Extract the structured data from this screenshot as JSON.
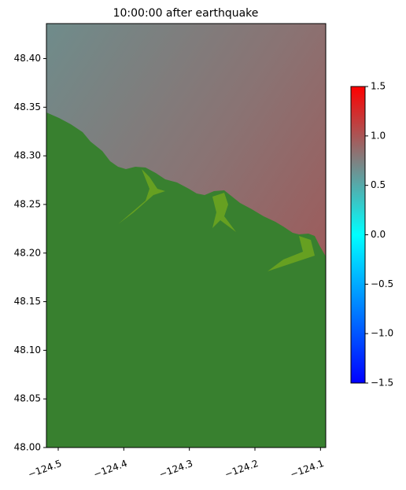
{
  "chart_data": {
    "type": "heatmap",
    "title": "10:00:00 after earthquake",
    "xlim": [
      -124.518,
      -124.092
    ],
    "xticks": [
      {
        "value": -124.5,
        "label": "−124.5"
      },
      {
        "value": -124.4,
        "label": "−124.4"
      },
      {
        "value": -124.3,
        "label": "−124.3"
      },
      {
        "value": -124.2,
        "label": "−124.2"
      },
      {
        "value": -124.1,
        "label": "−124.1"
      }
    ],
    "ylim": [
      48.0,
      48.436
    ],
    "yticks": [
      {
        "value": 48.0,
        "label": "48.00"
      },
      {
        "value": 48.05,
        "label": "48.05"
      },
      {
        "value": 48.1,
        "label": "48.10"
      },
      {
        "value": 48.15,
        "label": "48.15"
      },
      {
        "value": 48.2,
        "label": "48.20"
      },
      {
        "value": 48.25,
        "label": "48.25"
      },
      {
        "value": 48.3,
        "label": "48.30"
      },
      {
        "value": 48.35,
        "label": "48.35"
      },
      {
        "value": 48.4,
        "label": "48.40"
      }
    ],
    "land_color": "#38802f",
    "colorbar": {
      "clim": [
        -1.5,
        1.5
      ],
      "ticks": [
        {
          "value": -1.5,
          "label": "−1.5"
        },
        {
          "value": -1.0,
          "label": "−1.0"
        },
        {
          "value": -0.5,
          "label": "−0.5"
        },
        {
          "value": 0.0,
          "label": "0.0"
        },
        0.5,
        {
          "value": 1.0,
          "label": "1.0"
        },
        1.5
      ],
      "colors": [
        "#0000ff",
        "#00ffff",
        "#808080",
        "#ff0000"
      ]
    }
  }
}
